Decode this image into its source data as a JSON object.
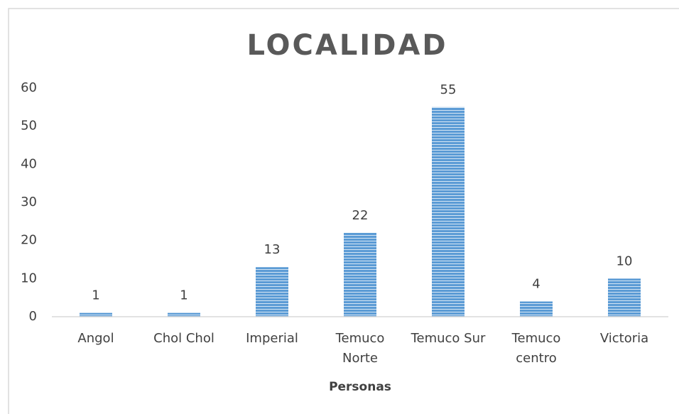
{
  "chart_data": {
    "type": "bar",
    "title": "LOCALIDAD",
    "x_label": "Personas",
    "categories": [
      "Angol",
      "Chol Chol",
      "Imperial",
      "Temuco Norte",
      "Temuco Sur",
      "Temuco centro",
      "Victoria"
    ],
    "values": [
      1,
      1,
      13,
      22,
      55,
      4,
      10
    ],
    "color": "#5b9bd5",
    "ylim": [
      0,
      60
    ],
    "yticks": [
      0,
      10,
      20,
      30,
      40,
      50,
      60
    ],
    "grid": false
  }
}
